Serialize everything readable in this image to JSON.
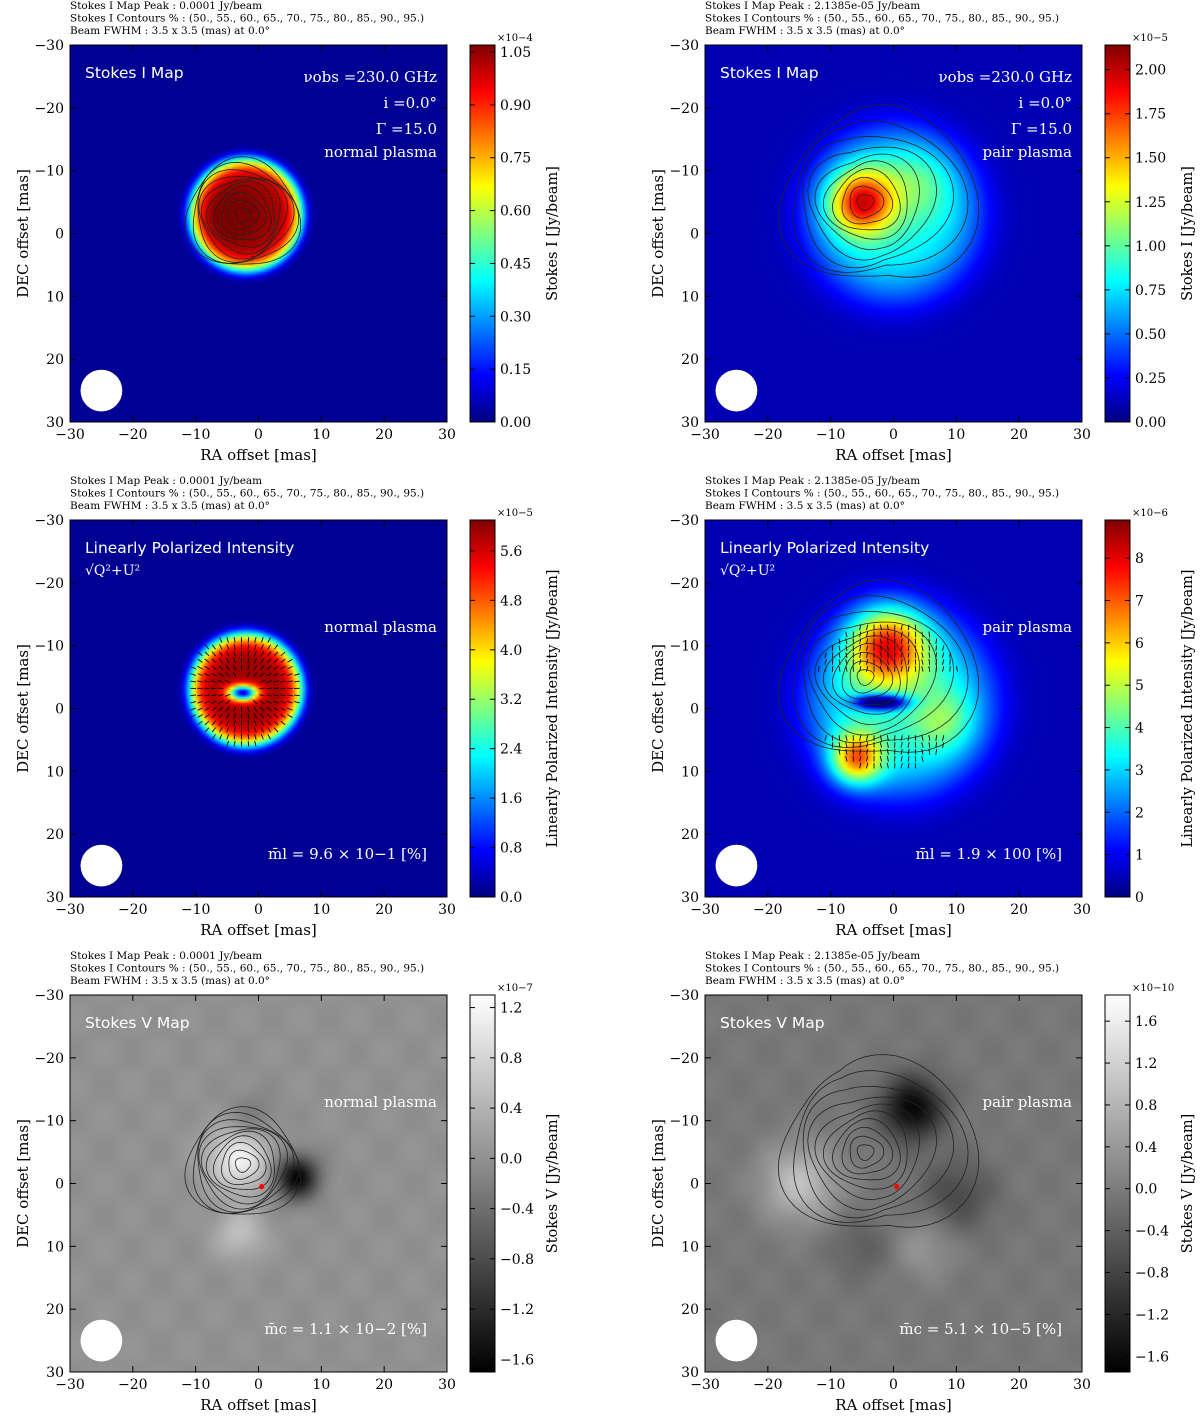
{
  "colors": {
    "jet": [
      "#00007f",
      "#0000ff",
      "#007fff",
      "#00ffff",
      "#7fff7f",
      "#ffff00",
      "#ff7f00",
      "#ff0000",
      "#7f0000"
    ],
    "gray": [
      "#000000",
      "#ffffff"
    ],
    "contour": "#222222",
    "beam": "#ffffff",
    "core_marker": "#ff0000",
    "annotation": "#ffffff"
  },
  "chart_data": [
    {
      "id": "stokes-i-normal",
      "type": "heatmap",
      "colormap": "jet",
      "header": [
        "Stokes I Map Peak :  0.0001 Jy/beam",
        "Stokes I Contours % :  (50., 55., 60., 65., 70., 75., 80., 85., 90., 95.)",
        "Beam FWHM :  3.5 x 3.5 (mas) at 0.0°"
      ],
      "panel_title": "Stokes I Map",
      "params": [
        "νobs =230.0 GHz",
        "i =0.0°",
        "Γ =15.0"
      ],
      "plasma": "normal plasma",
      "stat": "",
      "xlabel": "RA offset [mas]",
      "ylabel": "DEC offset [mas]",
      "xlim": [
        -30,
        30
      ],
      "ylim": [
        30,
        -30
      ],
      "xticks": [
        "−30",
        "−20",
        "−10",
        "0",
        "10",
        "20",
        "30"
      ],
      "yticks": [
        "−30",
        "−20",
        "−10",
        "0",
        "10",
        "20",
        "30"
      ],
      "colorbar": {
        "label": "Stokes I [Jy/beam]",
        "exponent": "×10−4",
        "range": [
          0,
          1.07
        ],
        "ticks": [
          0.0,
          0.15,
          0.3,
          0.45,
          0.6,
          0.75,
          0.9,
          1.05
        ],
        "tick_labels": [
          "0.00",
          "0.15",
          "0.30",
          "0.45",
          "0.60",
          "0.75",
          "0.90",
          "1.05"
        ]
      },
      "field": {
        "background": 0.02,
        "sources": [
          {
            "x": -2,
            "y": -3,
            "r": 9,
            "amp": 0.95,
            "sharp": 8
          },
          {
            "x": -4,
            "y": -3,
            "r": 3.5,
            "amp": 0.08,
            "sharp": 2
          }
        ]
      },
      "contours": {
        "center": [
          -2.5,
          -3
        ],
        "radii": [
          9.0,
          8.3,
          7.6,
          6.9,
          6.2,
          5.4,
          4.5,
          3.5,
          2.4,
          1.2
        ]
      },
      "vectors": null,
      "core": null,
      "hole": null
    },
    {
      "id": "stokes-i-pair",
      "type": "heatmap",
      "colormap": "jet",
      "header": [
        "Stokes I Map Peak :  2.1385e-05 Jy/beam",
        "Stokes I Contours % :  (50., 55., 60., 65., 70., 75., 80., 85., 90., 95.)",
        "Beam FWHM :  3.5 x 3.5 (mas) at 0.0°"
      ],
      "panel_title": "Stokes I Map",
      "params": [
        "νobs =230.0 GHz",
        "i =0.0°",
        "Γ =15.0"
      ],
      "plasma": "pair plasma",
      "stat": "",
      "xlabel": "RA offset [mas]",
      "ylabel": "DEC offset [mas]",
      "xlim": [
        -30,
        30
      ],
      "ylim": [
        30,
        -30
      ],
      "xticks": [
        "−30",
        "−20",
        "−10",
        "0",
        "10",
        "20",
        "30"
      ],
      "yticks": [
        "−30",
        "−20",
        "−10",
        "0",
        "10",
        "20",
        "30"
      ],
      "colorbar": {
        "label": "Stokes I [Jy/beam]",
        "exponent": "×10−5",
        "range": [
          0,
          2.14
        ],
        "ticks": [
          0.0,
          0.25,
          0.5,
          0.75,
          1.0,
          1.25,
          1.5,
          1.75,
          2.0
        ],
        "tick_labels": [
          "0.00",
          "0.25",
          "0.50",
          "0.75",
          "1.00",
          "1.25",
          "1.50",
          "1.75",
          "2.00"
        ]
      },
      "field": {
        "background": 0.05,
        "sources": [
          {
            "x": 0,
            "y": -3,
            "r": 14,
            "amp": 0.33,
            "sharp": 4
          },
          {
            "x": -5,
            "y": -5,
            "r": 5,
            "amp": 0.55,
            "sharp": 2
          },
          {
            "x": 4,
            "y": -8,
            "r": 6,
            "amp": 0.12,
            "sharp": 2
          }
        ]
      },
      "contours": {
        "center": [
          -4.5,
          -5
        ],
        "radii": [
          13.5,
          12.0,
          10.5,
          9.0,
          7.5,
          6.2,
          5.0,
          3.8,
          2.6,
          1.3
        ],
        "skew": 0.35
      },
      "vectors": null,
      "core": null,
      "hole": null
    },
    {
      "id": "lpi-normal",
      "type": "heatmap",
      "colormap": "jet",
      "header": [
        "Stokes I Map Peak :  0.0001 Jy/beam",
        "Stokes I Contours % :  (50., 55., 60., 65., 70., 75., 80., 85., 90., 95.)",
        "Beam FWHM :  3.5 x 3.5 (mas) at 0.0°"
      ],
      "panel_title": "Linearly Polarized Intensity",
      "panel_subtitle": "√Q²+U²",
      "params": [],
      "plasma": "normal plasma",
      "stat": "m̄l =  9.6 × 10−1 [%]",
      "xlabel": "RA offset [mas]",
      "ylabel": "DEC offset [mas]",
      "xlim": [
        -30,
        30
      ],
      "ylim": [
        30,
        -30
      ],
      "xticks": [
        "−30",
        "−20",
        "−10",
        "0",
        "10",
        "20",
        "30"
      ],
      "yticks": [
        "−30",
        "−20",
        "−10",
        "0",
        "10",
        "20",
        "30"
      ],
      "colorbar": {
        "label": "Linearly Polarized Intensity [Jy/beam]",
        "exponent": "×10−5",
        "range": [
          0,
          6.1
        ],
        "ticks": [
          0.0,
          0.8,
          1.6,
          2.4,
          3.2,
          4.0,
          4.8,
          5.6
        ],
        "tick_labels": [
          "0.0",
          "0.8",
          "1.6",
          "2.4",
          "3.2",
          "4.0",
          "4.8",
          "5.6"
        ]
      },
      "field": {
        "background": 0.02,
        "sources": [
          {
            "x": -2,
            "y": -3,
            "r": 9,
            "amp": 0.95,
            "sharp": 8
          }
        ]
      },
      "hole": {
        "x": -2.5,
        "y": -2.5,
        "rx": 2.8,
        "ry": 1.5,
        "depth": 0.9
      },
      "contours": null,
      "vectors": {
        "center": [
          -2.5,
          -3
        ],
        "rmin": 2.5,
        "rmax": 9.0,
        "mode": "radial"
      },
      "core": null
    },
    {
      "id": "lpi-pair",
      "type": "heatmap",
      "colormap": "jet",
      "header": [
        "Stokes I Map Peak :  2.1385e-05 Jy/beam",
        "Stokes I Contours % :  (50., 55., 60., 65., 70., 75., 80., 85., 90., 95.)",
        "Beam FWHM :  3.5 x 3.5 (mas) at 0.0°"
      ],
      "panel_title": "Linearly Polarized Intensity",
      "panel_subtitle": "√Q²+U²",
      "params": [],
      "plasma": "pair plasma",
      "stat": "m̄l =  1.9 × 100 [%]",
      "xlabel": "RA offset [mas]",
      "ylabel": "DEC offset [mas]",
      "xlim": [
        -30,
        30
      ],
      "ylim": [
        30,
        -30
      ],
      "xticks": [
        "−30",
        "−20",
        "−10",
        "0",
        "10",
        "20",
        "30"
      ],
      "yticks": [
        "−30",
        "−20",
        "−10",
        "0",
        "10",
        "20",
        "30"
      ],
      "colorbar": {
        "label": "Linearly Polarized Intensity [Jy/beam]",
        "exponent": "×10−6",
        "range": [
          0,
          8.9
        ],
        "ticks": [
          0,
          1,
          2,
          3,
          4,
          5,
          6,
          7,
          8
        ],
        "tick_labels": [
          "0",
          "1",
          "2",
          "3",
          "4",
          "5",
          "6",
          "7",
          "8"
        ]
      },
      "field": {
        "background": 0.05,
        "sources": [
          {
            "x": 1,
            "y": -1,
            "r": 15,
            "amp": 0.35,
            "sharp": 4
          },
          {
            "x": -1,
            "y": -10,
            "r": 6,
            "amp": 0.55,
            "sharp": 2
          },
          {
            "x": -6,
            "y": 8,
            "r": 4,
            "amp": 0.5,
            "sharp": 2
          },
          {
            "x": 8,
            "y": 2,
            "r": 5,
            "amp": 0.15,
            "sharp": 2
          }
        ]
      },
      "hole": {
        "x": -2,
        "y": -1,
        "rx": 5,
        "ry": 1.5,
        "depth": 0.6
      },
      "contours": {
        "center": [
          -4.5,
          -5
        ],
        "radii": [
          13.5,
          12.0,
          10.5,
          9.0,
          7.5,
          6.2,
          5.0,
          3.8,
          2.6,
          1.3
        ],
        "skew": 0.35
      },
      "vectors": {
        "center": [
          -1,
          -2
        ],
        "rmin": 3.0,
        "rmax": 12.0,
        "mode": "vertical"
      },
      "core": null
    },
    {
      "id": "stokes-v-normal",
      "type": "heatmap",
      "colormap": "gray",
      "header": [
        "Stokes I Map Peak :  0.0001 Jy/beam",
        "Stokes I Contours % :  (50., 55., 60., 65., 70., 75., 80., 85., 90., 95.)",
        "Beam FWHM :  3.5 x 3.5 (mas) at 0.0°"
      ],
      "panel_title": "Stokes V Map",
      "params": [],
      "plasma": "normal plasma",
      "stat": "m̄c =  1.1 × 10−2 [%]",
      "xlabel": "RA offset [mas]",
      "ylabel": "DEC offset [mas]",
      "xlim": [
        -30,
        30
      ],
      "ylim": [
        30,
        -30
      ],
      "xticks": [
        "−30",
        "−20",
        "−10",
        "0",
        "10",
        "20",
        "30"
      ],
      "yticks": [
        "−30",
        "−20",
        "−10",
        "0",
        "10",
        "20",
        "30"
      ],
      "colorbar": {
        "label": "Stokes V [Jy/beam]",
        "exponent": "×10−7",
        "range": [
          -1.7,
          1.3
        ],
        "ticks": [
          -1.6,
          -1.2,
          -0.8,
          -0.4,
          0.0,
          0.4,
          0.8,
          1.2
        ],
        "tick_labels": [
          "−1.6",
          "−1.2",
          "−0.8",
          "−0.4",
          "0.0",
          "0.4",
          "0.8",
          "1.2"
        ]
      },
      "field": {
        "background": 0.57,
        "sources": [
          {
            "x": -3,
            "y": -4,
            "r": 5,
            "amp": 0.38,
            "sharp": 2
          },
          {
            "x": 6,
            "y": -1,
            "r": 3.5,
            "amp": -0.55,
            "sharp": 2
          },
          {
            "x": -3,
            "y": 8,
            "r": 4,
            "amp": 0.18,
            "sharp": 2
          },
          {
            "x": -1,
            "y": -10,
            "r": 4,
            "amp": -0.12,
            "sharp": 2
          }
        ]
      },
      "contours": {
        "center": [
          -2.5,
          -3
        ],
        "radii": [
          9.0,
          8.3,
          7.6,
          6.9,
          6.2,
          5.4,
          4.5,
          3.5,
          2.4,
          1.2
        ]
      },
      "vectors": null,
      "hole": null,
      "core": {
        "x": 0.5,
        "y": 0.5
      }
    },
    {
      "id": "stokes-v-pair",
      "type": "heatmap",
      "colormap": "gray",
      "header": [
        "Stokes I Map Peak :  2.1385e-05 Jy/beam",
        "Stokes I Contours % :  (50., 55., 60., 65., 70., 75., 80., 85., 90., 95.)",
        "Beam FWHM :  3.5 x 3.5 (mas) at 0.0°"
      ],
      "panel_title": "Stokes V Map",
      "params": [],
      "plasma": "pair plasma",
      "stat": "m̄c =  5.1 × 10−5 [%]",
      "xlabel": "RA offset [mas]",
      "ylabel": "DEC offset [mas]",
      "xlim": [
        -30,
        30
      ],
      "ylim": [
        30,
        -30
      ],
      "xticks": [
        "−30",
        "−20",
        "−10",
        "0",
        "10",
        "20",
        "30"
      ],
      "yticks": [
        "−30",
        "−20",
        "−10",
        "0",
        "10",
        "20",
        "30"
      ],
      "colorbar": {
        "label": "Stokes V [Jy/beam]",
        "exponent": "×10−10",
        "range": [
          -1.75,
          1.85
        ],
        "ticks": [
          -1.6,
          -1.2,
          -0.8,
          -0.4,
          0.0,
          0.4,
          0.8,
          1.2,
          1.6
        ],
        "tick_labels": [
          "−1.6",
          "−1.2",
          "−0.8",
          "−0.4",
          "0.0",
          "0.4",
          "0.8",
          "1.2",
          "1.6"
        ]
      },
      "field": {
        "background": 0.47,
        "sources": [
          {
            "x": 3,
            "y": -12,
            "r": 5,
            "amp": -0.45,
            "sharp": 2
          },
          {
            "x": -15,
            "y": 0,
            "r": 6,
            "amp": 0.28,
            "sharp": 2
          },
          {
            "x": 10,
            "y": 2,
            "r": 6,
            "amp": -0.18,
            "sharp": 2
          },
          {
            "x": 5,
            "y": 10,
            "r": 5,
            "amp": 0.12,
            "sharp": 2
          },
          {
            "x": -5,
            "y": 10,
            "r": 5,
            "amp": -0.1,
            "sharp": 2
          }
        ]
      },
      "contours": {
        "center": [
          -4.5,
          -5
        ],
        "radii": [
          13.5,
          12.0,
          10.5,
          9.0,
          7.5,
          6.2,
          5.0,
          3.8,
          2.6,
          1.3
        ],
        "skew": 0.35
      },
      "vectors": null,
      "hole": null,
      "core": {
        "x": 0.5,
        "y": 0.5
      }
    }
  ]
}
